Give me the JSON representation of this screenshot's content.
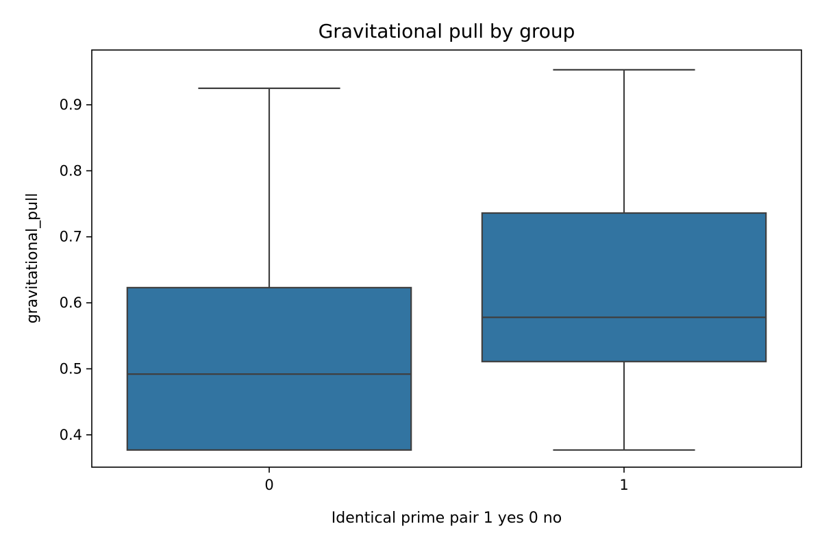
{
  "chart_data": {
    "type": "box",
    "title": "Gravitational pull by group",
    "xlabel": "Identical prime pair 1 yes 0 no",
    "ylabel": "gravitational_pull",
    "categories": [
      "0",
      "1"
    ],
    "boxes": [
      {
        "category": "0",
        "whisker_low": 0.377,
        "q1": 0.377,
        "median": 0.492,
        "q3": 0.623,
        "whisker_high": 0.925
      },
      {
        "category": "1",
        "whisker_low": 0.377,
        "q1": 0.511,
        "median": 0.578,
        "q3": 0.736,
        "whisker_high": 0.953
      }
    ],
    "ylim": [
      0.351,
      0.983
    ],
    "yticks": [
      0.4,
      0.5,
      0.6,
      0.7,
      0.8,
      0.9
    ],
    "ytick_labels": [
      "0.4",
      "0.5",
      "0.6",
      "0.7",
      "0.8",
      "0.9"
    ],
    "grid": false,
    "legend": "none",
    "box_color": "#3274a1",
    "line_color": "#3f3f3f"
  }
}
